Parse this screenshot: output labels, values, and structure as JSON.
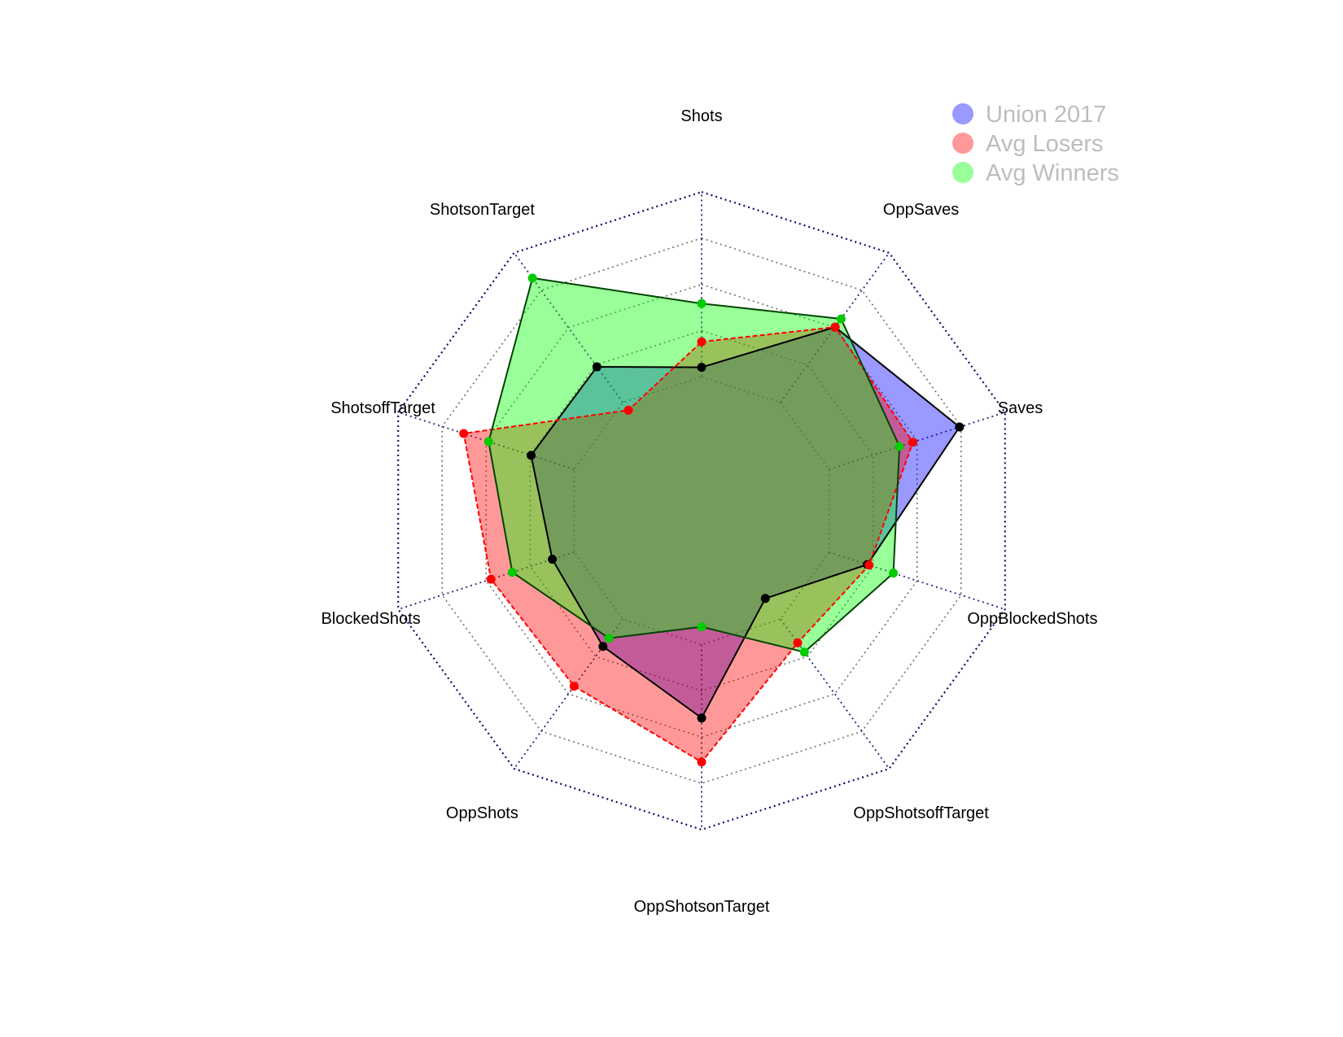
{
  "chart_data": {
    "type": "radar",
    "axes": [
      "Shots",
      "OppSaves",
      "Saves",
      "OppBlockedShots",
      "OppShotsoffTarget",
      "OppShotsonTarget",
      "OppShots",
      "BlockedShots",
      "ShotsoffTarget",
      "ShotsonTarget"
    ],
    "scale": [
      0,
      5
    ],
    "grid_rings": 5,
    "grid": true,
    "legend_position": "top-right",
    "series": [
      {
        "name": "Union 2017",
        "color": "#0000ff",
        "fill": "rgba(0,0,255,0.4)",
        "line_color": "#000000",
        "line_style": "solid",
        "point_color": "#000000",
        "values": [
          2.25,
          3.56,
          4.25,
          2.73,
          1.7,
          3.25,
          2.63,
          2.46,
          2.81,
          2.79
        ]
      },
      {
        "name": "Avg Losers",
        "color": "#ff0000",
        "fill": "rgba(255,0,0,0.4)",
        "line_color": "#ff0000",
        "line_style": "dashed",
        "point_color": "#ff0000",
        "values": [
          2.65,
          3.56,
          3.48,
          2.76,
          2.56,
          3.94,
          3.4,
          3.47,
          3.92,
          1.95
        ]
      },
      {
        "name": "Avg Winners",
        "color": "#00ff00",
        "fill": "rgba(0,255,0,0.4)",
        "line_color": "#004400",
        "line_style": "solid",
        "point_color": "#00cc00",
        "values": [
          3.25,
          3.72,
          3.26,
          3.16,
          2.74,
          1.82,
          2.47,
          3.12,
          3.51,
          4.51
        ]
      }
    ]
  }
}
